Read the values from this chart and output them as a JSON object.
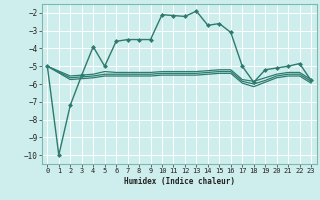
{
  "xlabel": "Humidex (Indice chaleur)",
  "ylabel": "",
  "background_color": "#ceeeed",
  "grid_color": "#ffffff",
  "line_color": "#2d7a6e",
  "xlim": [
    -0.5,
    23.5
  ],
  "ylim": [
    -10.5,
    -1.5
  ],
  "yticks": [
    -10,
    -9,
    -8,
    -7,
    -6,
    -5,
    -4,
    -3,
    -2
  ],
  "xticks": [
    0,
    1,
    2,
    3,
    4,
    5,
    6,
    7,
    8,
    9,
    10,
    11,
    12,
    13,
    14,
    15,
    16,
    17,
    18,
    19,
    20,
    21,
    22,
    23
  ],
  "lines": [
    {
      "x": [
        0,
        1,
        2,
        3,
        4,
        5,
        6,
        7,
        8,
        9,
        10,
        11,
        12,
        13,
        14,
        15,
        16,
        17,
        18,
        19,
        20,
        21,
        22,
        23
      ],
      "y": [
        -5.0,
        -10.0,
        -7.2,
        -5.5,
        -3.9,
        -5.0,
        -3.6,
        -3.5,
        -3.5,
        -3.5,
        -2.1,
        -2.15,
        -2.2,
        -1.9,
        -2.7,
        -2.6,
        -3.1,
        -5.0,
        -5.9,
        -5.2,
        -5.1,
        -5.0,
        -4.85,
        -5.8
      ],
      "marker": "D",
      "markersize": 2.0,
      "linewidth": 1.0,
      "has_marker": true
    },
    {
      "x": [
        0,
        2,
        3,
        4,
        5,
        6,
        7,
        8,
        9,
        10,
        11,
        12,
        13,
        14,
        15,
        16,
        17,
        18,
        19,
        20,
        21,
        22,
        23
      ],
      "y": [
        -5.0,
        -5.55,
        -5.5,
        -5.45,
        -5.3,
        -5.35,
        -5.35,
        -5.35,
        -5.35,
        -5.3,
        -5.3,
        -5.3,
        -5.3,
        -5.25,
        -5.2,
        -5.2,
        -5.75,
        -5.85,
        -5.65,
        -5.45,
        -5.35,
        -5.35,
        -5.75
      ],
      "marker": null,
      "markersize": 0,
      "linewidth": 0.9,
      "has_marker": false
    },
    {
      "x": [
        0,
        2,
        3,
        4,
        5,
        6,
        7,
        8,
        9,
        10,
        11,
        12,
        13,
        14,
        15,
        16,
        17,
        18,
        19,
        20,
        21,
        22,
        23
      ],
      "y": [
        -5.0,
        -5.65,
        -5.6,
        -5.55,
        -5.45,
        -5.45,
        -5.45,
        -5.45,
        -5.45,
        -5.4,
        -5.4,
        -5.4,
        -5.4,
        -5.35,
        -5.3,
        -5.3,
        -5.85,
        -6.0,
        -5.8,
        -5.55,
        -5.45,
        -5.45,
        -5.85
      ],
      "marker": null,
      "markersize": 0,
      "linewidth": 0.9,
      "has_marker": false
    },
    {
      "x": [
        0,
        2,
        3,
        4,
        5,
        6,
        7,
        8,
        9,
        10,
        11,
        12,
        13,
        14,
        15,
        16,
        17,
        18,
        19,
        20,
        21,
        22,
        23
      ],
      "y": [
        -5.0,
        -5.75,
        -5.7,
        -5.65,
        -5.55,
        -5.55,
        -5.55,
        -5.55,
        -5.55,
        -5.5,
        -5.5,
        -5.5,
        -5.5,
        -5.45,
        -5.4,
        -5.4,
        -5.95,
        -6.15,
        -5.9,
        -5.65,
        -5.55,
        -5.55,
        -5.95
      ],
      "marker": null,
      "markersize": 0,
      "linewidth": 0.9,
      "has_marker": false
    }
  ]
}
